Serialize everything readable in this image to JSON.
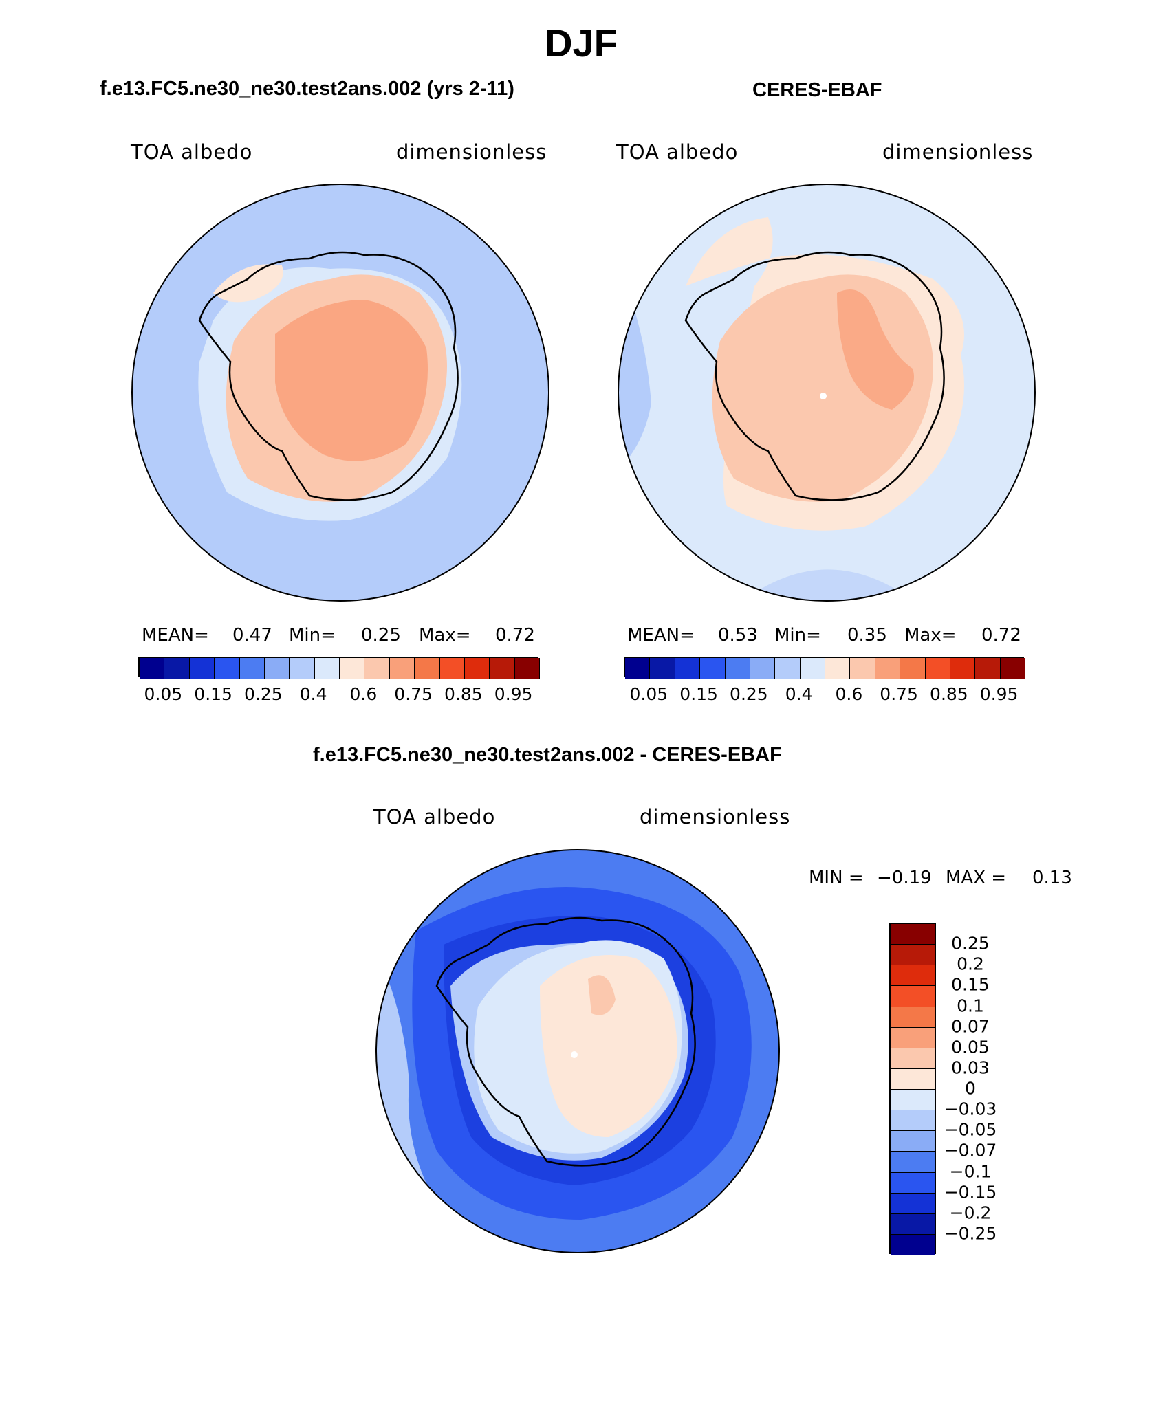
{
  "figure": {
    "title": "DJF"
  },
  "panels": [
    {
      "subtitle": "f.e13.FC5.ne30_ne30.test2ans.002 (yrs 2-11)",
      "variable": "TOA albedo",
      "units": "dimensionless",
      "stats": {
        "mean_label": "MEAN=",
        "mean": "0.47",
        "min_label": "Min=",
        "min": "0.25",
        "max_label": "Max=",
        "max": "0.72"
      },
      "colorbar_ticks": [
        "0.05",
        "0.15",
        "0.25",
        "0.4",
        "0.6",
        "0.75",
        "0.85",
        "0.95"
      ]
    },
    {
      "subtitle": "CERES-EBAF",
      "variable": "TOA albedo",
      "units": "dimensionless",
      "stats": {
        "mean_label": "MEAN=",
        "mean": "0.53",
        "min_label": "Min=",
        "min": "0.35",
        "max_label": "Max=",
        "max": "0.72"
      },
      "colorbar_ticks": [
        "0.05",
        "0.15",
        "0.25",
        "0.4",
        "0.6",
        "0.75",
        "0.85",
        "0.95"
      ]
    },
    {
      "subtitle": "f.e13.FC5.ne30_ne30.test2ans.002 - CERES-EBAF",
      "variable": "TOA albedo",
      "units": "dimensionless",
      "stats": {
        "min_label": "MIN =",
        "min": "−0.19",
        "max_label": "MAX =",
        "max": "0.13"
      },
      "colorbar_ticks": [
        "0.25",
        "0.2",
        "0.15",
        "0.1",
        "0.07",
        "0.05",
        "0.03",
        "0",
        "−0.03",
        "−0.05",
        "−0.07",
        "−0.1",
        "−0.15",
        "−0.2",
        "−0.25"
      ]
    }
  ],
  "colors": {
    "abs_scale": [
      "#00008f",
      "#0818a6",
      "#1432d6",
      "#2a55f0",
      "#4c7cf2",
      "#8aacf6",
      "#b4ccfa",
      "#dbe9fb",
      "#fde7d8",
      "#fbc8ae",
      "#f9a07a",
      "#f47848",
      "#f34f26",
      "#de2c0c",
      "#b71a08",
      "#880000"
    ],
    "diff_scale": [
      "#880000",
      "#b71a08",
      "#de2c0c",
      "#f34f26",
      "#f47848",
      "#f9a07a",
      "#fbc8ae",
      "#fde7d8",
      "#dbe9fb",
      "#b4ccfa",
      "#8aacf6",
      "#4c7cf2",
      "#2a55f0",
      "#1432d6",
      "#0818a6",
      "#00008f"
    ]
  }
}
